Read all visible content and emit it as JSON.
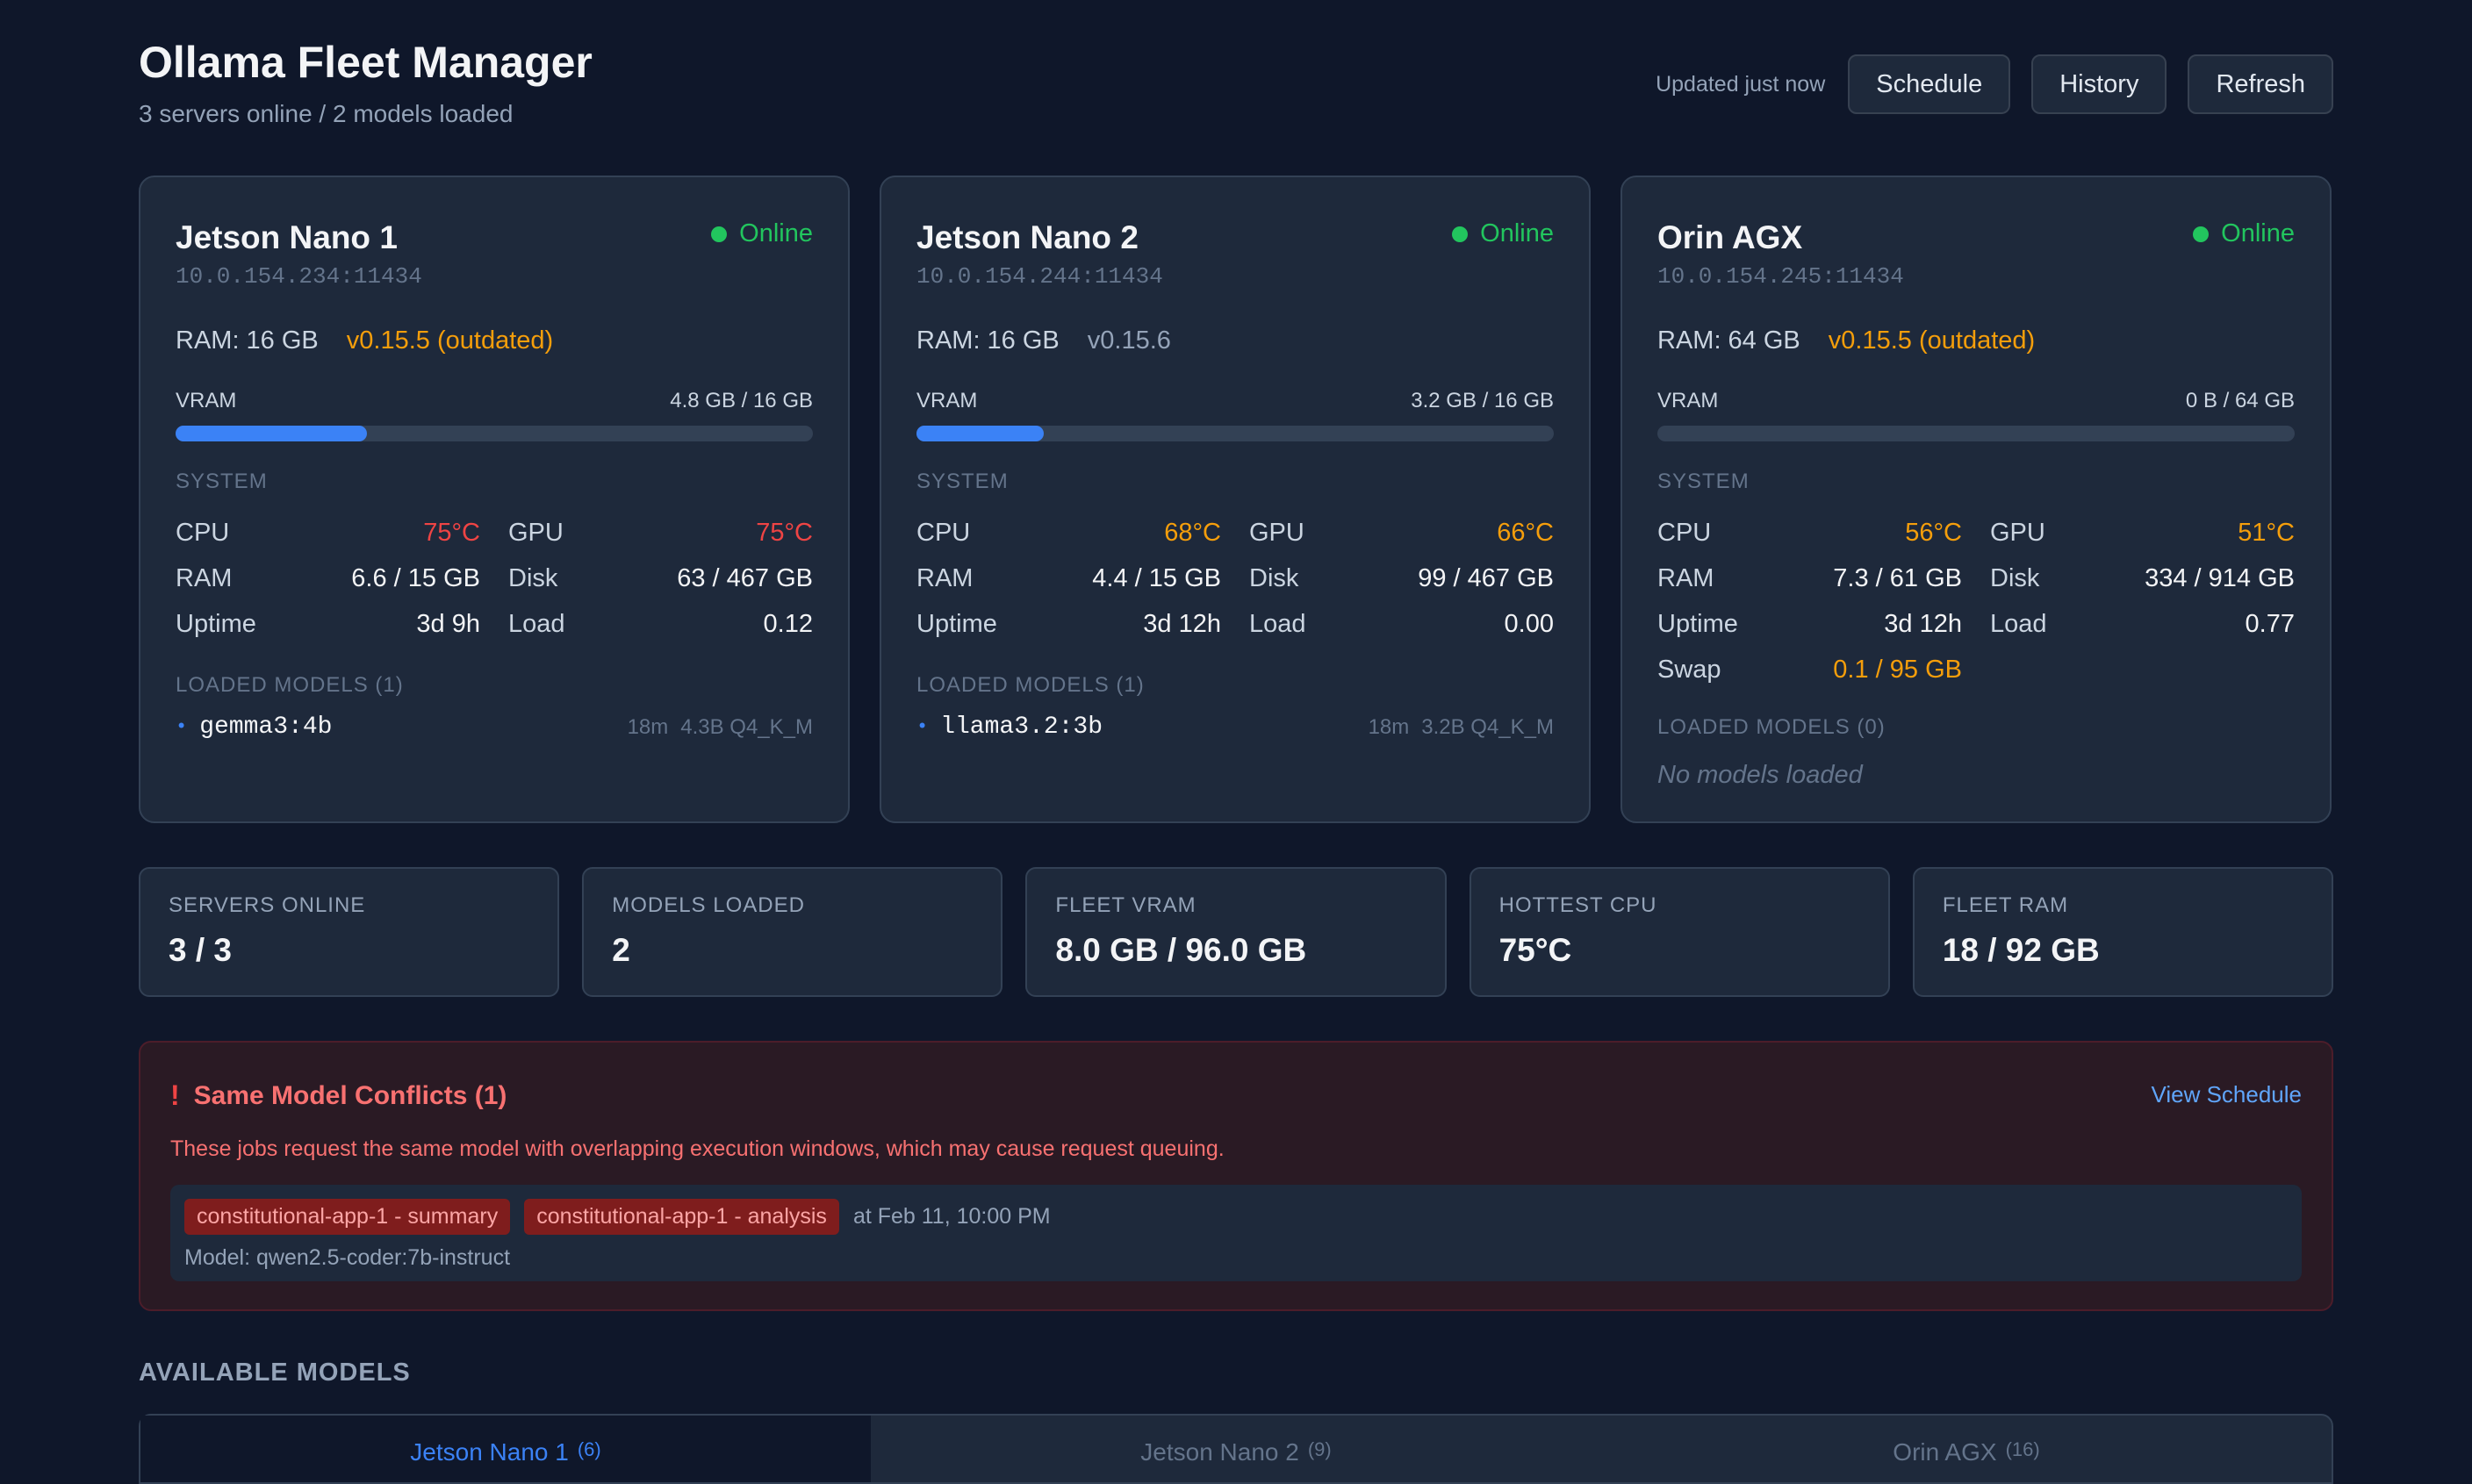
{
  "header": {
    "title": "Ollama Fleet Manager",
    "subtitle": "3 servers online / 2 models loaded",
    "updated": "Updated just now",
    "buttons": {
      "schedule": "Schedule",
      "history": "History",
      "refresh": "Refresh"
    }
  },
  "servers": [
    {
      "name": "Jetson Nano 1",
      "address": "10.0.154.234:11434",
      "status": "Online",
      "ram": "RAM: 16 GB",
      "version": "v0.15.5 (outdated)",
      "vram_label": "VRAM",
      "vram_value": "4.8 GB / 16 GB",
      "vram_fraction": 0.3,
      "system_label": "SYSTEM",
      "stats": {
        "cpu_label": "CPU",
        "cpu": "75°C",
        "gpu_label": "GPU",
        "gpu": "75°C",
        "ram_label": "RAM",
        "ram": "6.6 / 15 GB",
        "disk_label": "Disk",
        "disk": "63 / 467 GB",
        "uptime_label": "Uptime",
        "uptime": "3d 9h",
        "load_label": "Load",
        "load": "0.12"
      },
      "models_label": "LOADED MODELS (1)",
      "models": [
        {
          "name": "gemma3:4b",
          "age": "18m",
          "detail": "4.3B Q4_K_M"
        }
      ]
    },
    {
      "name": "Jetson Nano 2",
      "address": "10.0.154.244:11434",
      "status": "Online",
      "ram": "RAM: 16 GB",
      "version": "v0.15.6",
      "vram_label": "VRAM",
      "vram_value": "3.2 GB / 16 GB",
      "vram_fraction": 0.2,
      "system_label": "SYSTEM",
      "stats": {
        "cpu_label": "CPU",
        "cpu": "68°C",
        "gpu_label": "GPU",
        "gpu": "66°C",
        "ram_label": "RAM",
        "ram": "4.4 / 15 GB",
        "disk_label": "Disk",
        "disk": "99 / 467 GB",
        "uptime_label": "Uptime",
        "uptime": "3d 12h",
        "load_label": "Load",
        "load": "0.00"
      },
      "models_label": "LOADED MODELS (1)",
      "models": [
        {
          "name": "llama3.2:3b",
          "age": "18m",
          "detail": "3.2B Q4_K_M"
        }
      ]
    },
    {
      "name": "Orin AGX",
      "address": "10.0.154.245:11434",
      "status": "Online",
      "ram": "RAM: 64 GB",
      "version": "v0.15.5 (outdated)",
      "vram_label": "VRAM",
      "vram_value": "0 B / 64 GB",
      "vram_fraction": 0.0,
      "system_label": "SYSTEM",
      "stats": {
        "cpu_label": "CPU",
        "cpu": "56°C",
        "gpu_label": "GPU",
        "gpu": "51°C",
        "ram_label": "RAM",
        "ram": "7.3 / 61 GB",
        "disk_label": "Disk",
        "disk": "334 / 914 GB",
        "uptime_label": "Uptime",
        "uptime": "3d 12h",
        "load_label": "Load",
        "load": "0.77",
        "swap_label": "Swap",
        "swap": "0.1 / 95 GB"
      },
      "models_label": "LOADED MODELS (0)",
      "no_models": "No models loaded"
    }
  ],
  "summary": [
    {
      "label": "SERVERS ONLINE",
      "value": "3 / 3"
    },
    {
      "label": "MODELS LOADED",
      "value": "2"
    },
    {
      "label": "FLEET VRAM",
      "value": "8.0 GB / 96.0 GB"
    },
    {
      "label": "HOTTEST CPU",
      "value": "75°C"
    },
    {
      "label": "FLEET RAM",
      "value": "18 / 92 GB"
    }
  ],
  "conflicts": {
    "icon": "!",
    "title": "Same Model Conflicts (1)",
    "view_link": "View Schedule",
    "description": "These jobs request the same model with overlapping execution windows, which may cause request queuing.",
    "items": [
      {
        "jobs": [
          "constitutional-app-1 - summary",
          "constitutional-app-1 - analysis"
        ],
        "time": "at Feb 11, 10:00 PM",
        "model": "Model: qwen2.5-coder:7b-instruct"
      }
    ]
  },
  "available_models": {
    "label": "AVAILABLE MODELS",
    "tabs": [
      {
        "name": "Jetson Nano 1",
        "count": "(6)"
      },
      {
        "name": "Jetson Nano 2",
        "count": "(9)"
      },
      {
        "name": "Orin AGX",
        "count": "(16)"
      }
    ]
  },
  "colors": {
    "background": "#0f172a",
    "card": "#1e293b",
    "online": "#22c55e",
    "accent": "#3b82f6",
    "hot": "#ef4444",
    "warm": "#f59e0b"
  }
}
